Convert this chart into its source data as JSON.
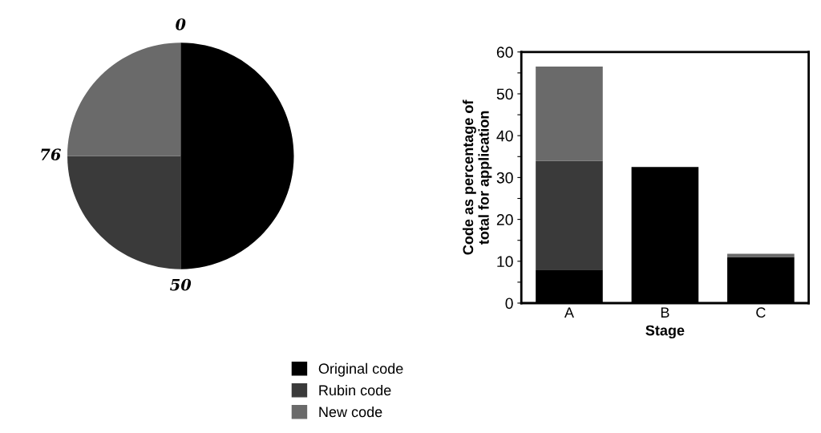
{
  "chart_data": [
    {
      "type": "pie",
      "categories": [
        null,
        null,
        null
      ],
      "values": [
        50,
        25,
        25
      ],
      "colors": [
        "#000000",
        "#3a3a3a",
        "#6a6a6a"
      ],
      "annotations": [
        "0",
        "50",
        "76"
      ]
    },
    {
      "type": "bar",
      "stacked": true,
      "categories": [
        "A",
        "B",
        "C"
      ],
      "xlabel": "Stage",
      "ylabel": "Code as percentage of\ntotal for application",
      "series": [
        {
          "name": "Original code",
          "color": "#000000",
          "values": [
            8,
            32.5,
            11
          ]
        },
        {
          "name": "Rubin code",
          "color": "#3a3a3a",
          "values": [
            26,
            0,
            0
          ]
        },
        {
          "name": "New code",
          "color": "#6a6a6a",
          "values": [
            22.5,
            0,
            0.8
          ]
        }
      ],
      "ylim": [
        0,
        60
      ],
      "yticks": [
        0,
        {
          "value": 5,
          "label": null
        },
        10,
        {
          "value": 15,
          "label": null
        },
        20,
        {
          "value": 25,
          "label": null
        },
        30,
        {
          "value": 35,
          "label": null
        },
        40,
        {
          "value": 45,
          "label": null
        },
        50,
        {
          "value": 55,
          "label": null
        },
        60
      ],
      "grid": false,
      "legend": "bottom"
    }
  ]
}
